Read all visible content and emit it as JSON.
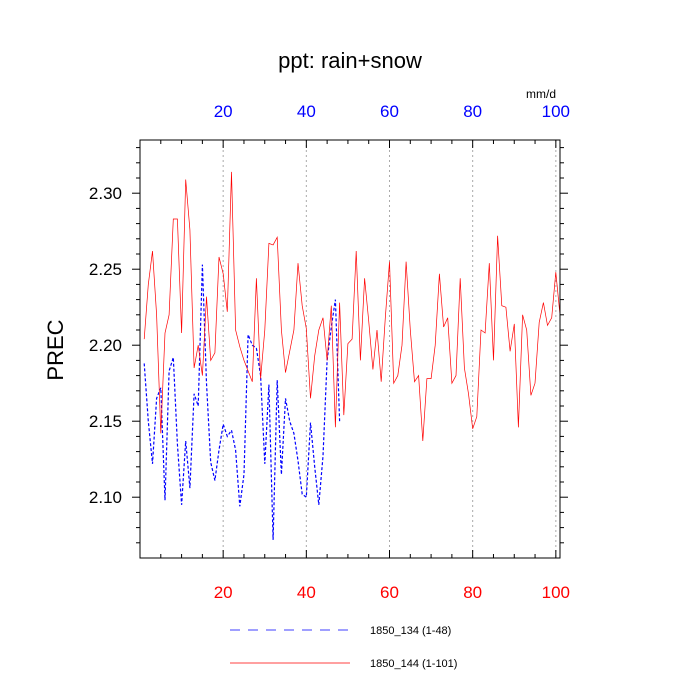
{
  "chart_data": {
    "type": "line",
    "title": "ppt: rain+snow",
    "ylabel": "PREC",
    "top_axis_unit": "mm/d",
    "xlim": [
      0,
      101
    ],
    "ylim": [
      2.06,
      2.335
    ],
    "x_ticks": [
      20,
      40,
      60,
      80,
      100
    ],
    "y_ticks": [
      2.1,
      2.15,
      2.2,
      2.25,
      2.3
    ],
    "y_tick_labels": [
      "2.10",
      "2.15",
      "2.20",
      "2.25",
      "2.30"
    ],
    "colors": {
      "bottom_axis": "#ff0000",
      "top_axis": "#0000ff"
    },
    "series": [
      {
        "name": "1850_134 (1-48)",
        "color": "#0000ff",
        "style": "dashed",
        "x_start": 1,
        "values": [
          2.188,
          2.15,
          2.122,
          2.165,
          2.172,
          2.098,
          2.183,
          2.192,
          2.135,
          2.095,
          2.137,
          2.106,
          2.168,
          2.16,
          2.253,
          2.175,
          2.123,
          2.111,
          2.131,
          2.148,
          2.14,
          2.144,
          2.131,
          2.094,
          2.115,
          2.207,
          2.2,
          2.198,
          2.18,
          2.122,
          2.174,
          2.072,
          2.177,
          2.115,
          2.165,
          2.15,
          2.142,
          2.124,
          2.102,
          2.1,
          2.149,
          2.12,
          2.095,
          2.127,
          2.19,
          2.212,
          2.23,
          2.15
        ]
      },
      {
        "name": "1850_144 (1-101)",
        "color": "#ff0000",
        "style": "solid",
        "x_start": 1,
        "values": [
          2.204,
          2.24,
          2.262,
          2.22,
          2.142,
          2.208,
          2.22,
          2.283,
          2.283,
          2.208,
          2.309,
          2.276,
          2.185,
          2.2,
          2.18,
          2.232,
          2.19,
          2.195,
          2.258,
          2.247,
          2.222,
          2.314,
          2.21,
          2.199,
          2.19,
          2.183,
          2.176,
          2.244,
          2.178,
          2.21,
          2.267,
          2.266,
          2.271,
          2.21,
          2.182,
          2.196,
          2.21,
          2.254,
          2.226,
          2.211,
          2.165,
          2.193,
          2.21,
          2.218,
          2.19,
          2.226,
          2.146,
          2.228,
          2.154,
          2.201,
          2.204,
          2.262,
          2.19,
          2.244,
          2.216,
          2.184,
          2.21,
          2.176,
          2.218,
          2.255,
          2.175,
          2.18,
          2.2,
          2.255,
          2.21,
          2.176,
          2.18,
          2.137,
          2.178,
          2.178,
          2.2,
          2.247,
          2.212,
          2.218,
          2.175,
          2.18,
          2.244,
          2.185,
          2.168,
          2.145,
          2.153,
          2.21,
          2.208,
          2.254,
          2.19,
          2.272,
          2.226,
          2.225,
          2.196,
          2.214,
          2.146,
          2.22,
          2.21,
          2.167,
          2.175,
          2.215,
          2.228,
          2.213,
          2.218,
          2.248,
          2.22
        ]
      }
    ]
  }
}
